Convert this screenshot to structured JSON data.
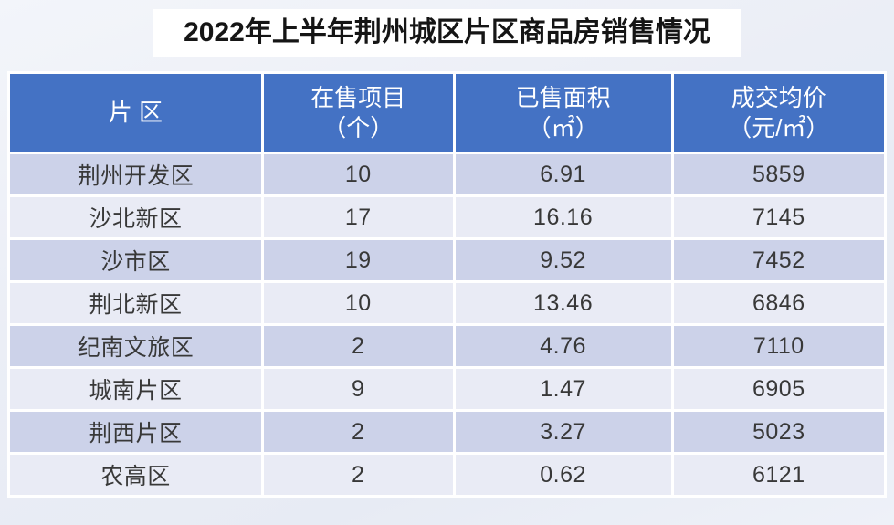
{
  "page": {
    "title": "2022年上半年荆州城区片区商品房销售情况"
  },
  "table": {
    "header": [
      {
        "line1": "片 区",
        "line2": ""
      },
      {
        "line1": "在售项目",
        "line2": "（个）"
      },
      {
        "line1": "已售面积",
        "line2": "（㎡）"
      },
      {
        "line1": "成交均价",
        "line2": "（元/㎡）"
      }
    ],
    "rows": [
      {
        "district": "荆州开发区",
        "projects": "10",
        "area": "6.91",
        "price": "5859"
      },
      {
        "district": "沙北新区",
        "projects": "17",
        "area": "16.16",
        "price": "7145"
      },
      {
        "district": "沙市区",
        "projects": "19",
        "area": "9.52",
        "price": "7452"
      },
      {
        "district": "荆北新区",
        "projects": "10",
        "area": "13.46",
        "price": "6846"
      },
      {
        "district": "纪南文旅区",
        "projects": "2",
        "area": "4.76",
        "price": "7110"
      },
      {
        "district": "城南片区",
        "projects": "9",
        "area": "1.47",
        "price": "6905"
      },
      {
        "district": "荆西片区",
        "projects": "2",
        "area": "3.27",
        "price": "5023"
      },
      {
        "district": "农高区",
        "projects": "2",
        "area": "0.62",
        "price": "6121"
      }
    ],
    "colors": {
      "header_bg": "#4472c4",
      "header_text": "#ffffff",
      "row_odd_bg": "#ccd2e9",
      "row_even_bg": "#e9ebf5",
      "gridline": "#ffffff",
      "cell_text": "#383838",
      "title_bg": "#ffffff",
      "page_bg": "#ebeef6"
    }
  },
  "chart_data": {
    "type": "table",
    "title": "2022年上半年荆州城区片区商品房销售情况",
    "columns": [
      "片区",
      "在售项目（个）",
      "已售面积（㎡）",
      "成交均价（元/㎡）"
    ],
    "rows": [
      [
        "荆州开发区",
        10,
        6.91,
        5859
      ],
      [
        "沙北新区",
        17,
        16.16,
        7145
      ],
      [
        "沙市区",
        19,
        9.52,
        7452
      ],
      [
        "荆北新区",
        10,
        13.46,
        6846
      ],
      [
        "纪南文旅区",
        2,
        4.76,
        7110
      ],
      [
        "城南片区",
        9,
        1.47,
        6905
      ],
      [
        "荆西片区",
        2,
        3.27,
        5023
      ],
      [
        "农高区",
        2,
        0.62,
        6121
      ]
    ],
    "legend_position": "none",
    "grid": true
  }
}
